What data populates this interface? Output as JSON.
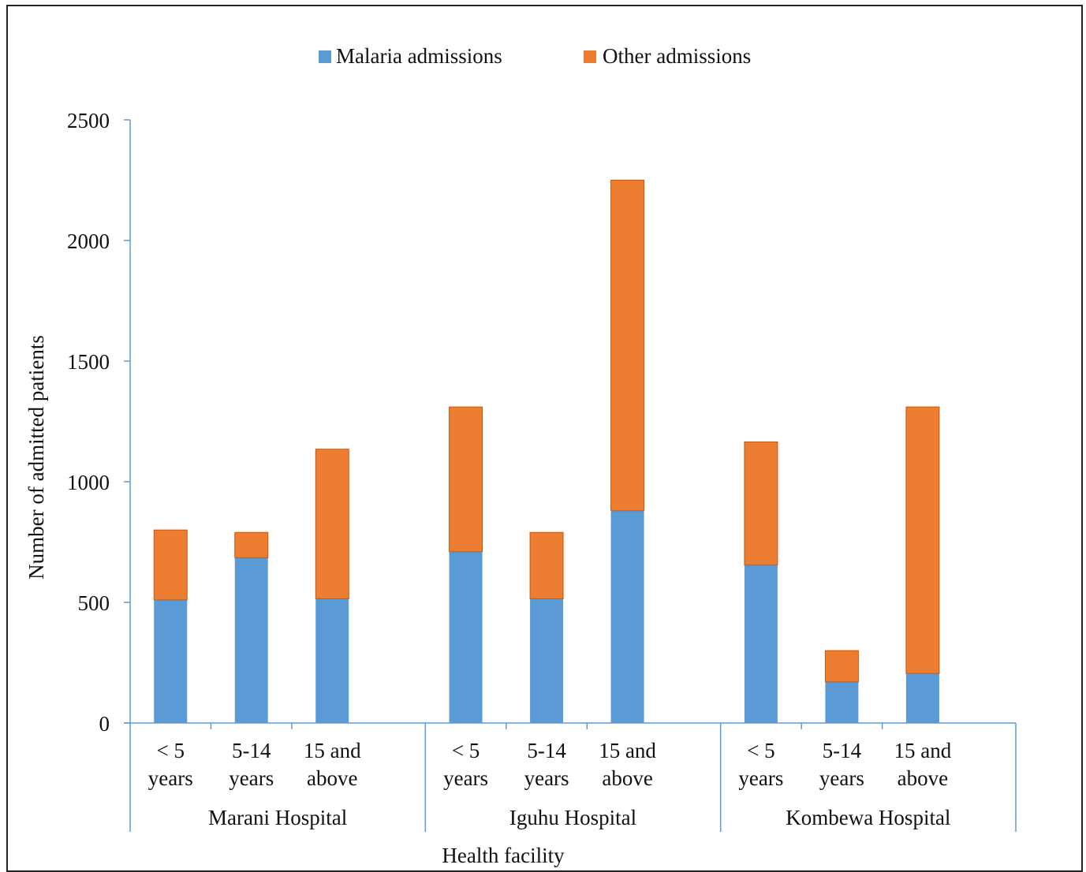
{
  "chart_data": {
    "type": "bar",
    "stacked": true,
    "title": "",
    "xlabel": "Health facility",
    "ylabel": "Number of admitted  patients",
    "ylim": [
      0,
      2500
    ],
    "yticks": [
      "0",
      "500",
      "1000",
      "1500",
      "2000",
      "2500"
    ],
    "legend_position": "top",
    "groups": [
      {
        "name": "Marani Hospital",
        "categories": [
          [
            "< 5",
            "years"
          ],
          [
            "5-14",
            "years"
          ],
          [
            "15 and",
            "above"
          ]
        ]
      },
      {
        "name": "Iguhu Hospital",
        "categories": [
          [
            "< 5",
            "years"
          ],
          [
            "5-14",
            "years"
          ],
          [
            "15 and",
            "above"
          ]
        ]
      },
      {
        "name": "Kombewa Hospital",
        "categories": [
          [
            "< 5",
            "years"
          ],
          [
            "5-14",
            "years"
          ],
          [
            "15 and",
            "above"
          ]
        ]
      }
    ],
    "series": [
      {
        "name": "Malaria admissions",
        "color": "#5b9bd5",
        "values": [
          510,
          685,
          515,
          710,
          515,
          880,
          655,
          170,
          205
        ]
      },
      {
        "name": "Other admissions",
        "color": "#ed7d31",
        "values": [
          290,
          105,
          620,
          600,
          275,
          1370,
          510,
          130,
          1105
        ]
      }
    ]
  }
}
